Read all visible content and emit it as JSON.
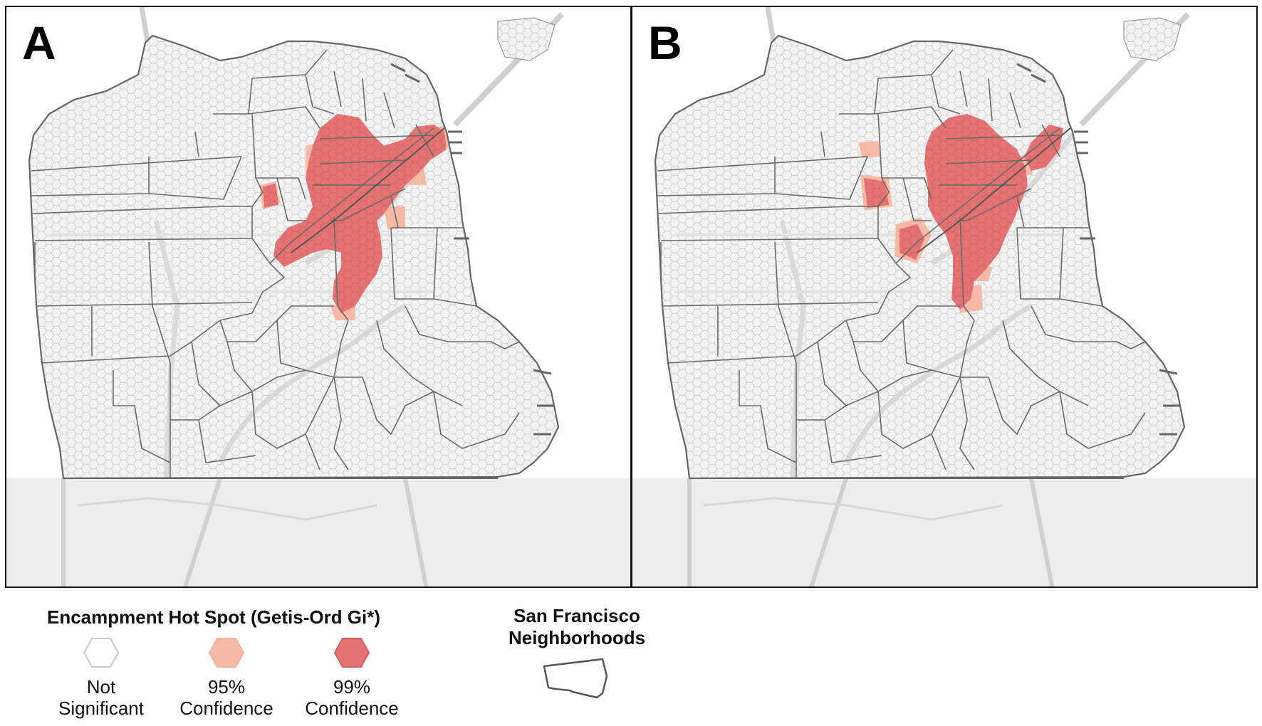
{
  "panels": [
    {
      "label": "A"
    },
    {
      "label": "B"
    }
  ],
  "legend": {
    "hotspot_title": "Encampment Hot Spot (Getis-Ord Gi*)",
    "items": [
      {
        "line1": "Not",
        "line2": "Significant",
        "color": "#ffffff",
        "stroke": "#c8c8c8"
      },
      {
        "line1": "95%",
        "line2": "Confidence",
        "color": "#f6b9a6",
        "stroke": "#f6b9a6"
      },
      {
        "line1": "99%",
        "line2": "Confidence",
        "color": "#e57373",
        "stroke": "#d06060"
      }
    ],
    "neighborhoods_title_line1": "San Francisco",
    "neighborhoods_title_line2": "Neighborhoods"
  },
  "colors": {
    "hex_fill": "#f4f4f4",
    "hex_stroke": "#d2d2d2",
    "boundary": "#666666",
    "road": "#d3d3d3",
    "outside_land": "#ececec",
    "hotspot_99": "#e57373",
    "hotspot_95": "#f6b9a6"
  }
}
